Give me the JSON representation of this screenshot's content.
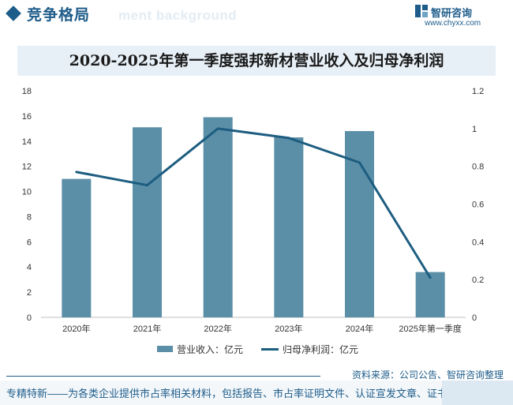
{
  "header": {
    "section_title": "竞争格局",
    "section_subtitle": "ment background",
    "brand_name": "智研咨询",
    "brand_url": "www.chyxx.com"
  },
  "chart_data": {
    "type": "bar+line",
    "title": "2020-2025年第一季度强邦新材营业收入及归母净利润",
    "categories": [
      "2020年",
      "2021年",
      "2022年",
      "2023年",
      "2024年",
      "2025年第一季度"
    ],
    "series": [
      {
        "name": "营业收入：亿元",
        "type": "bar",
        "axis": "left",
        "values": [
          11.0,
          15.1,
          15.9,
          14.3,
          14.8,
          3.6
        ],
        "color": "#5b8fa8"
      },
      {
        "name": "归母净利润：亿元",
        "type": "line",
        "axis": "right",
        "values": [
          0.77,
          0.7,
          1.0,
          0.95,
          0.82,
          0.21
        ],
        "color": "#1d5d80"
      }
    ],
    "y_left": {
      "min": 0,
      "max": 18,
      "ticks": [
        "0",
        "2",
        "4",
        "6",
        "8",
        "10",
        "12",
        "14",
        "16",
        "18"
      ]
    },
    "y_right": {
      "min": 0,
      "max": 1.2,
      "ticks": [
        "0",
        "0.2",
        "0.4",
        "0.6",
        "0.8",
        "1",
        "1.2"
      ]
    },
    "grid": false,
    "legend": "bottom-center"
  },
  "source": "资料来源：公司公告、智研咨询整理",
  "footer": "专精特新——为各类企业提供市占率相关材料，包括报告、市占率证明文件、认证宣发文章、证书"
}
